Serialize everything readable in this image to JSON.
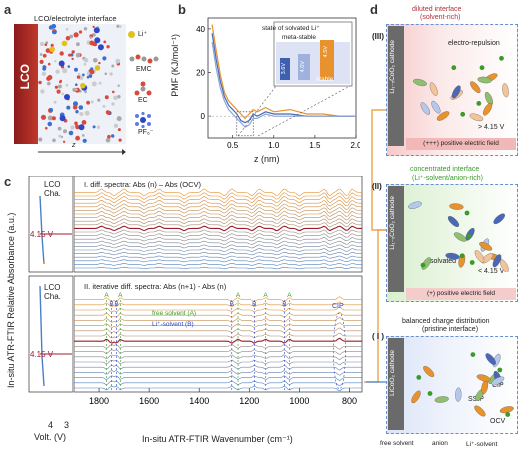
{
  "panels": {
    "a": {
      "letter": "a",
      "title": "LCO/electrolyte interface",
      "slab": "LCO",
      "axis": "z",
      "legend": [
        {
          "label": "Li⁺",
          "color": "#e2c21a"
        },
        {
          "label": "EMC",
          "color": "#3b6fd0"
        },
        {
          "label": "EC",
          "color": "#d94a3a"
        },
        {
          "label": "PF₆⁻",
          "color": "#2d47c8"
        }
      ]
    },
    "b": {
      "letter": "b",
      "ylabel": "PMF (KJ/mol⁻¹)",
      "xlabel": "z (nm)",
      "inset_title": "state of solvated Li⁺",
      "inset_meta": "meta-stable",
      "inset_stable": "stable",
      "inset_bars": [
        "3.6V",
        "4.0V",
        "4.5V"
      ]
    },
    "c": {
      "letter": "c",
      "ylabel": "In-situ ATR-FTIR Relative Absorbance (a.u.)",
      "xlabel": "In-situ ATR-FTIR Wavenumber (cm⁻¹)",
      "volt_label": "Volt. (V)",
      "volt_ticks": [
        "4",
        "3"
      ],
      "top": {
        "cha": "LCO Cha.",
        "marker": "4.15 V",
        "title": "I.  diff. spectra: Abs (n) – Abs (OCV)"
      },
      "bottom": {
        "cha": "LCO Cha.",
        "marker": "4.15 V",
        "title": "II.  iterative diff. spectra: Abs (n+1) - Abs (n)",
        "free": "free solvent (A)",
        "li": "Li⁺-solvent (B)",
        "cip": "CIP"
      }
    },
    "d": {
      "letter": "d",
      "III": {
        "num": "(III)",
        "head1": "diluted interface",
        "head2": "(solvent-rich)",
        "cathode": "Li₁₋ₓCoO₂ cathode",
        "repulsion": "electro-repulsion",
        "voltage": "> 4.15 V",
        "field": "(+++) positive electric field"
      },
      "II": {
        "num": "(II)",
        "head1": "concentrated interface",
        "head2": "(Li⁺-solvent/anion-rich)",
        "cathode": "Li₁₋ₓCoO₂ cathode",
        "solvated": "solvated",
        "voltage": "< 4.15 V",
        "field": "(+) positive electric field"
      },
      "I": {
        "num": "( I )",
        "head1": "balanced charge distribution",
        "head2": "(pristine interface)",
        "cathode": "LiCoO₂ cathode",
        "cip": "CIP",
        "ssip": "SSIP",
        "ocv": "OCV",
        "legend": [
          "free solvent",
          "anion",
          "Li⁺-solvent"
        ]
      }
    }
  },
  "chart_data": [
    {
      "type": "line",
      "panel": "b",
      "xlabel": "z (nm)",
      "ylabel": "PMF (KJ/mol⁻¹)",
      "xlim": [
        0.2,
        2.0
      ],
      "ylim": [
        -10,
        45
      ],
      "xticks": [
        0.5,
        1.0,
        1.5,
        2.0
      ],
      "yticks": [
        0,
        20,
        40
      ],
      "series": [
        {
          "color": "#e8922e",
          "x": [
            0.25,
            0.3,
            0.35,
            0.4,
            0.45,
            0.5,
            0.55,
            0.6,
            0.65,
            0.7,
            0.75,
            0.8,
            0.9,
            1.0,
            1.2,
            1.4,
            1.6,
            1.8,
            2.0
          ],
          "y": [
            42,
            30,
            19,
            11,
            7,
            5,
            3,
            1,
            -1,
            1,
            3,
            2,
            4,
            2,
            3,
            1,
            1,
            0,
            0
          ]
        },
        {
          "color": "#4a68b5",
          "x": [
            0.25,
            0.3,
            0.35,
            0.4,
            0.45,
            0.5,
            0.55,
            0.6,
            0.65,
            0.7,
            0.75,
            0.8,
            0.9,
            1.0,
            1.2,
            1.4,
            1.6,
            1.8,
            2.0
          ],
          "y": [
            38,
            26,
            16,
            9,
            5,
            3,
            1,
            -2,
            -3,
            -2,
            1,
            0,
            2,
            1,
            1,
            0,
            0,
            0,
            0
          ]
        },
        {
          "color": "#8aa6d8",
          "x": [
            0.25,
            0.3,
            0.35,
            0.4,
            0.45,
            0.5,
            0.55,
            0.6,
            0.65,
            0.7,
            0.75,
            0.8,
            0.9,
            1.0,
            1.2,
            1.4,
            1.6,
            1.8,
            2.0
          ],
          "y": [
            34,
            22,
            13,
            7,
            3,
            1,
            -1,
            -3,
            -5,
            -4,
            -1,
            -1,
            1,
            0,
            0,
            0,
            0,
            0,
            0
          ]
        }
      ]
    },
    {
      "type": "line",
      "panel": "c",
      "xlabel": "In-situ ATR-FTIR Wavenumber (cm⁻¹)",
      "xlim": [
        1900,
        750
      ],
      "xticks": [
        1800,
        1600,
        1400,
        1200,
        1000,
        800
      ],
      "peaks_top": [
        1790,
        1740,
        1700,
        1620,
        1560,
        1460,
        1380,
        1300,
        1270,
        1190,
        1160,
        1090,
        1060,
        1000,
        900,
        880,
        840,
        810,
        790
      ],
      "peaks_bottom_A": [
        1770,
        1715,
        1245,
        1135,
        1040
      ],
      "peaks_bottom_B": [
        1750,
        1730,
        1270,
        1180,
        1060
      ],
      "peak_CIP": 840
    }
  ]
}
